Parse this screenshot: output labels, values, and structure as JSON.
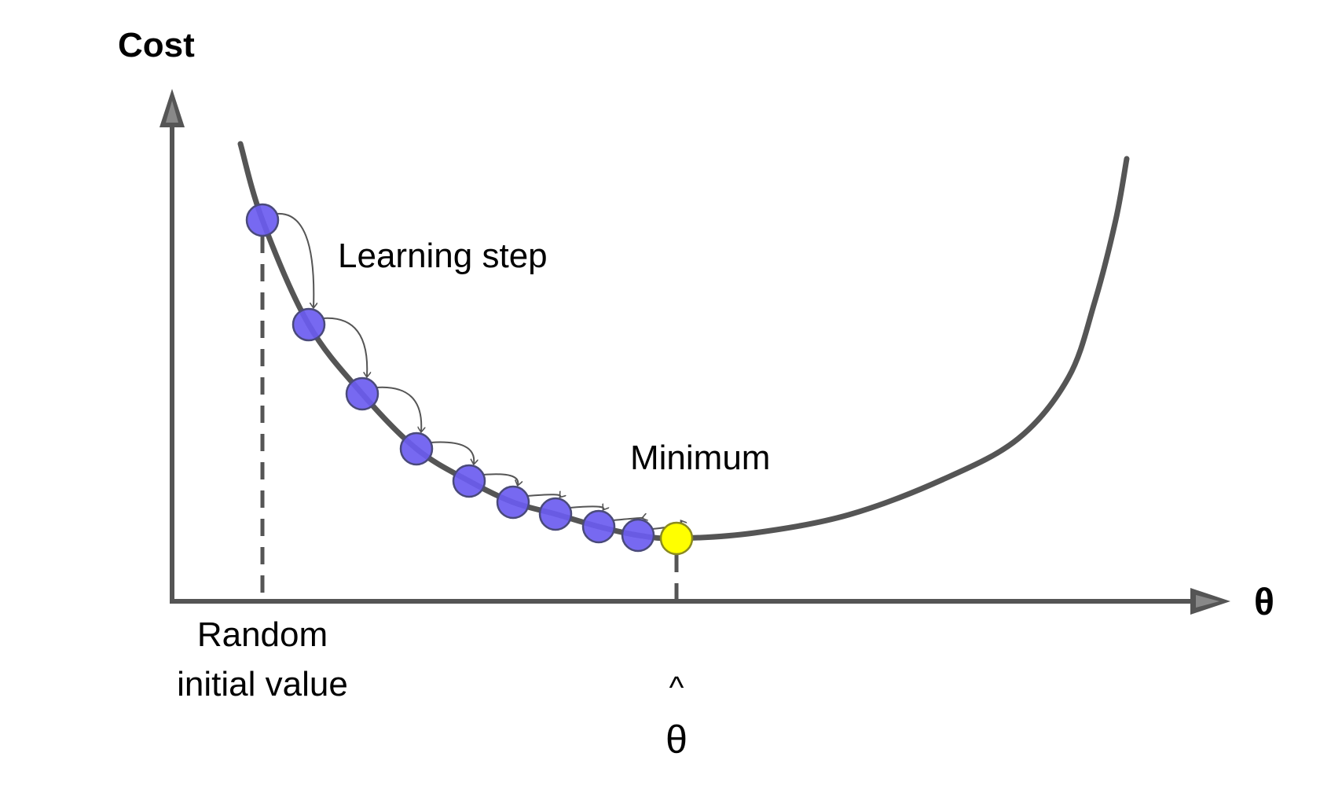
{
  "labels": {
    "y_axis": "Cost",
    "x_axis": "θ",
    "learning_step": "Learning step",
    "minimum": "Minimum",
    "random_line1": "Random",
    "random_line2": "initial value",
    "theta_hat_symbol": "θ",
    "theta_hat_accent": "^"
  },
  "colors": {
    "axis": "#555555",
    "curve": "#555555",
    "step_ball": "#6b5cf0",
    "step_ball_stroke": "#4a4a7a",
    "minimum_ball": "#ffff00",
    "minimum_ball_stroke": "#8a8a20"
  },
  "step_count": 9
}
